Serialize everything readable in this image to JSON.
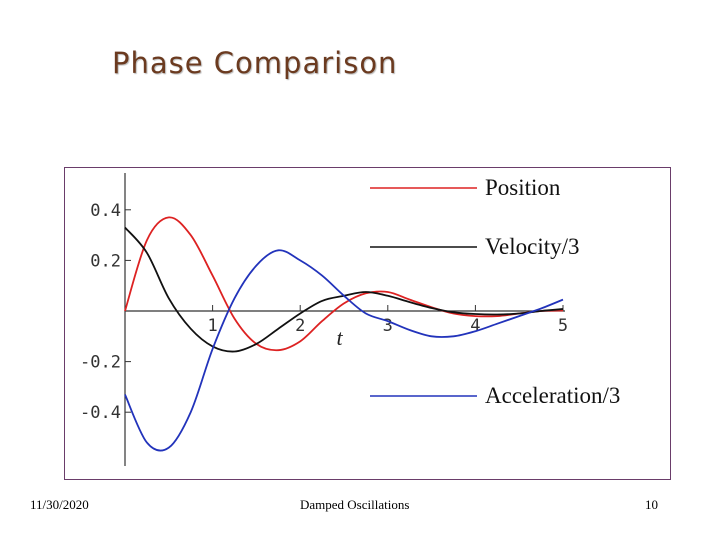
{
  "slide": {
    "title": "Phase Comparison",
    "footer_date": "11/30/2020",
    "footer_center": "Damped Oscillations",
    "page_number": "10"
  },
  "chart_data": {
    "type": "line",
    "xlabel": "t",
    "ylabel": "",
    "xlim": [
      0,
      5
    ],
    "ylim": [
      -0.6,
      0.52
    ],
    "x_ticks": [
      {
        "value": 1,
        "label": "1"
      },
      {
        "value": 2,
        "label": "2"
      },
      {
        "value": 3,
        "label": "3"
      },
      {
        "value": 4,
        "label": "4"
      },
      {
        "value": 5,
        "label": "5"
      }
    ],
    "y_ticks": [
      {
        "value": 0.4,
        "label": "0.4"
      },
      {
        "value": 0.2,
        "label": "0.2"
      },
      {
        "value": -0.2,
        "label": "-0.2"
      },
      {
        "value": -0.4,
        "label": "-0.4"
      }
    ],
    "legend_placement": "right",
    "grid": false,
    "series": [
      {
        "name": "Position",
        "color": "#dd2222",
        "x": [
          0,
          0.25,
          0.5,
          0.75,
          1.0,
          1.25,
          1.5,
          1.75,
          2.0,
          2.25,
          2.5,
          2.75,
          3.0,
          3.25,
          3.5,
          3.75,
          4.0,
          4.25,
          4.5,
          4.75,
          5.0
        ],
        "y": [
          0.0,
          0.28,
          0.37,
          0.3,
          0.14,
          -0.03,
          -0.13,
          -0.155,
          -0.12,
          -0.04,
          0.03,
          0.07,
          0.075,
          0.045,
          0.015,
          -0.01,
          -0.02,
          -0.02,
          -0.01,
          0.0,
          0.002
        ]
      },
      {
        "name": "Velocity/3",
        "color": "#111111",
        "x": [
          0,
          0.25,
          0.5,
          0.75,
          1.0,
          1.25,
          1.5,
          1.75,
          2.0,
          2.25,
          2.5,
          2.75,
          3.0,
          3.25,
          3.5,
          3.75,
          4.0,
          4.25,
          4.5,
          4.75,
          5.0
        ],
        "y": [
          0.33,
          0.23,
          0.05,
          -0.07,
          -0.14,
          -0.16,
          -0.13,
          -0.07,
          -0.01,
          0.04,
          0.06,
          0.075,
          0.06,
          0.035,
          0.012,
          -0.005,
          -0.012,
          -0.014,
          -0.01,
          0.0,
          0.008
        ]
      },
      {
        "name": "Acceleration/3",
        "color": "#2233bb",
        "x": [
          0,
          0.25,
          0.5,
          0.75,
          1.0,
          1.25,
          1.5,
          1.75,
          2.0,
          2.25,
          2.5,
          2.75,
          3.0,
          3.25,
          3.5,
          3.75,
          4.0,
          4.25,
          4.5,
          4.75,
          5.0
        ],
        "y": [
          -0.33,
          -0.52,
          -0.54,
          -0.4,
          -0.15,
          0.05,
          0.18,
          0.24,
          0.2,
          0.14,
          0.06,
          -0.01,
          -0.04,
          -0.075,
          -0.1,
          -0.1,
          -0.08,
          -0.05,
          -0.02,
          0.01,
          0.045
        ]
      }
    ]
  }
}
